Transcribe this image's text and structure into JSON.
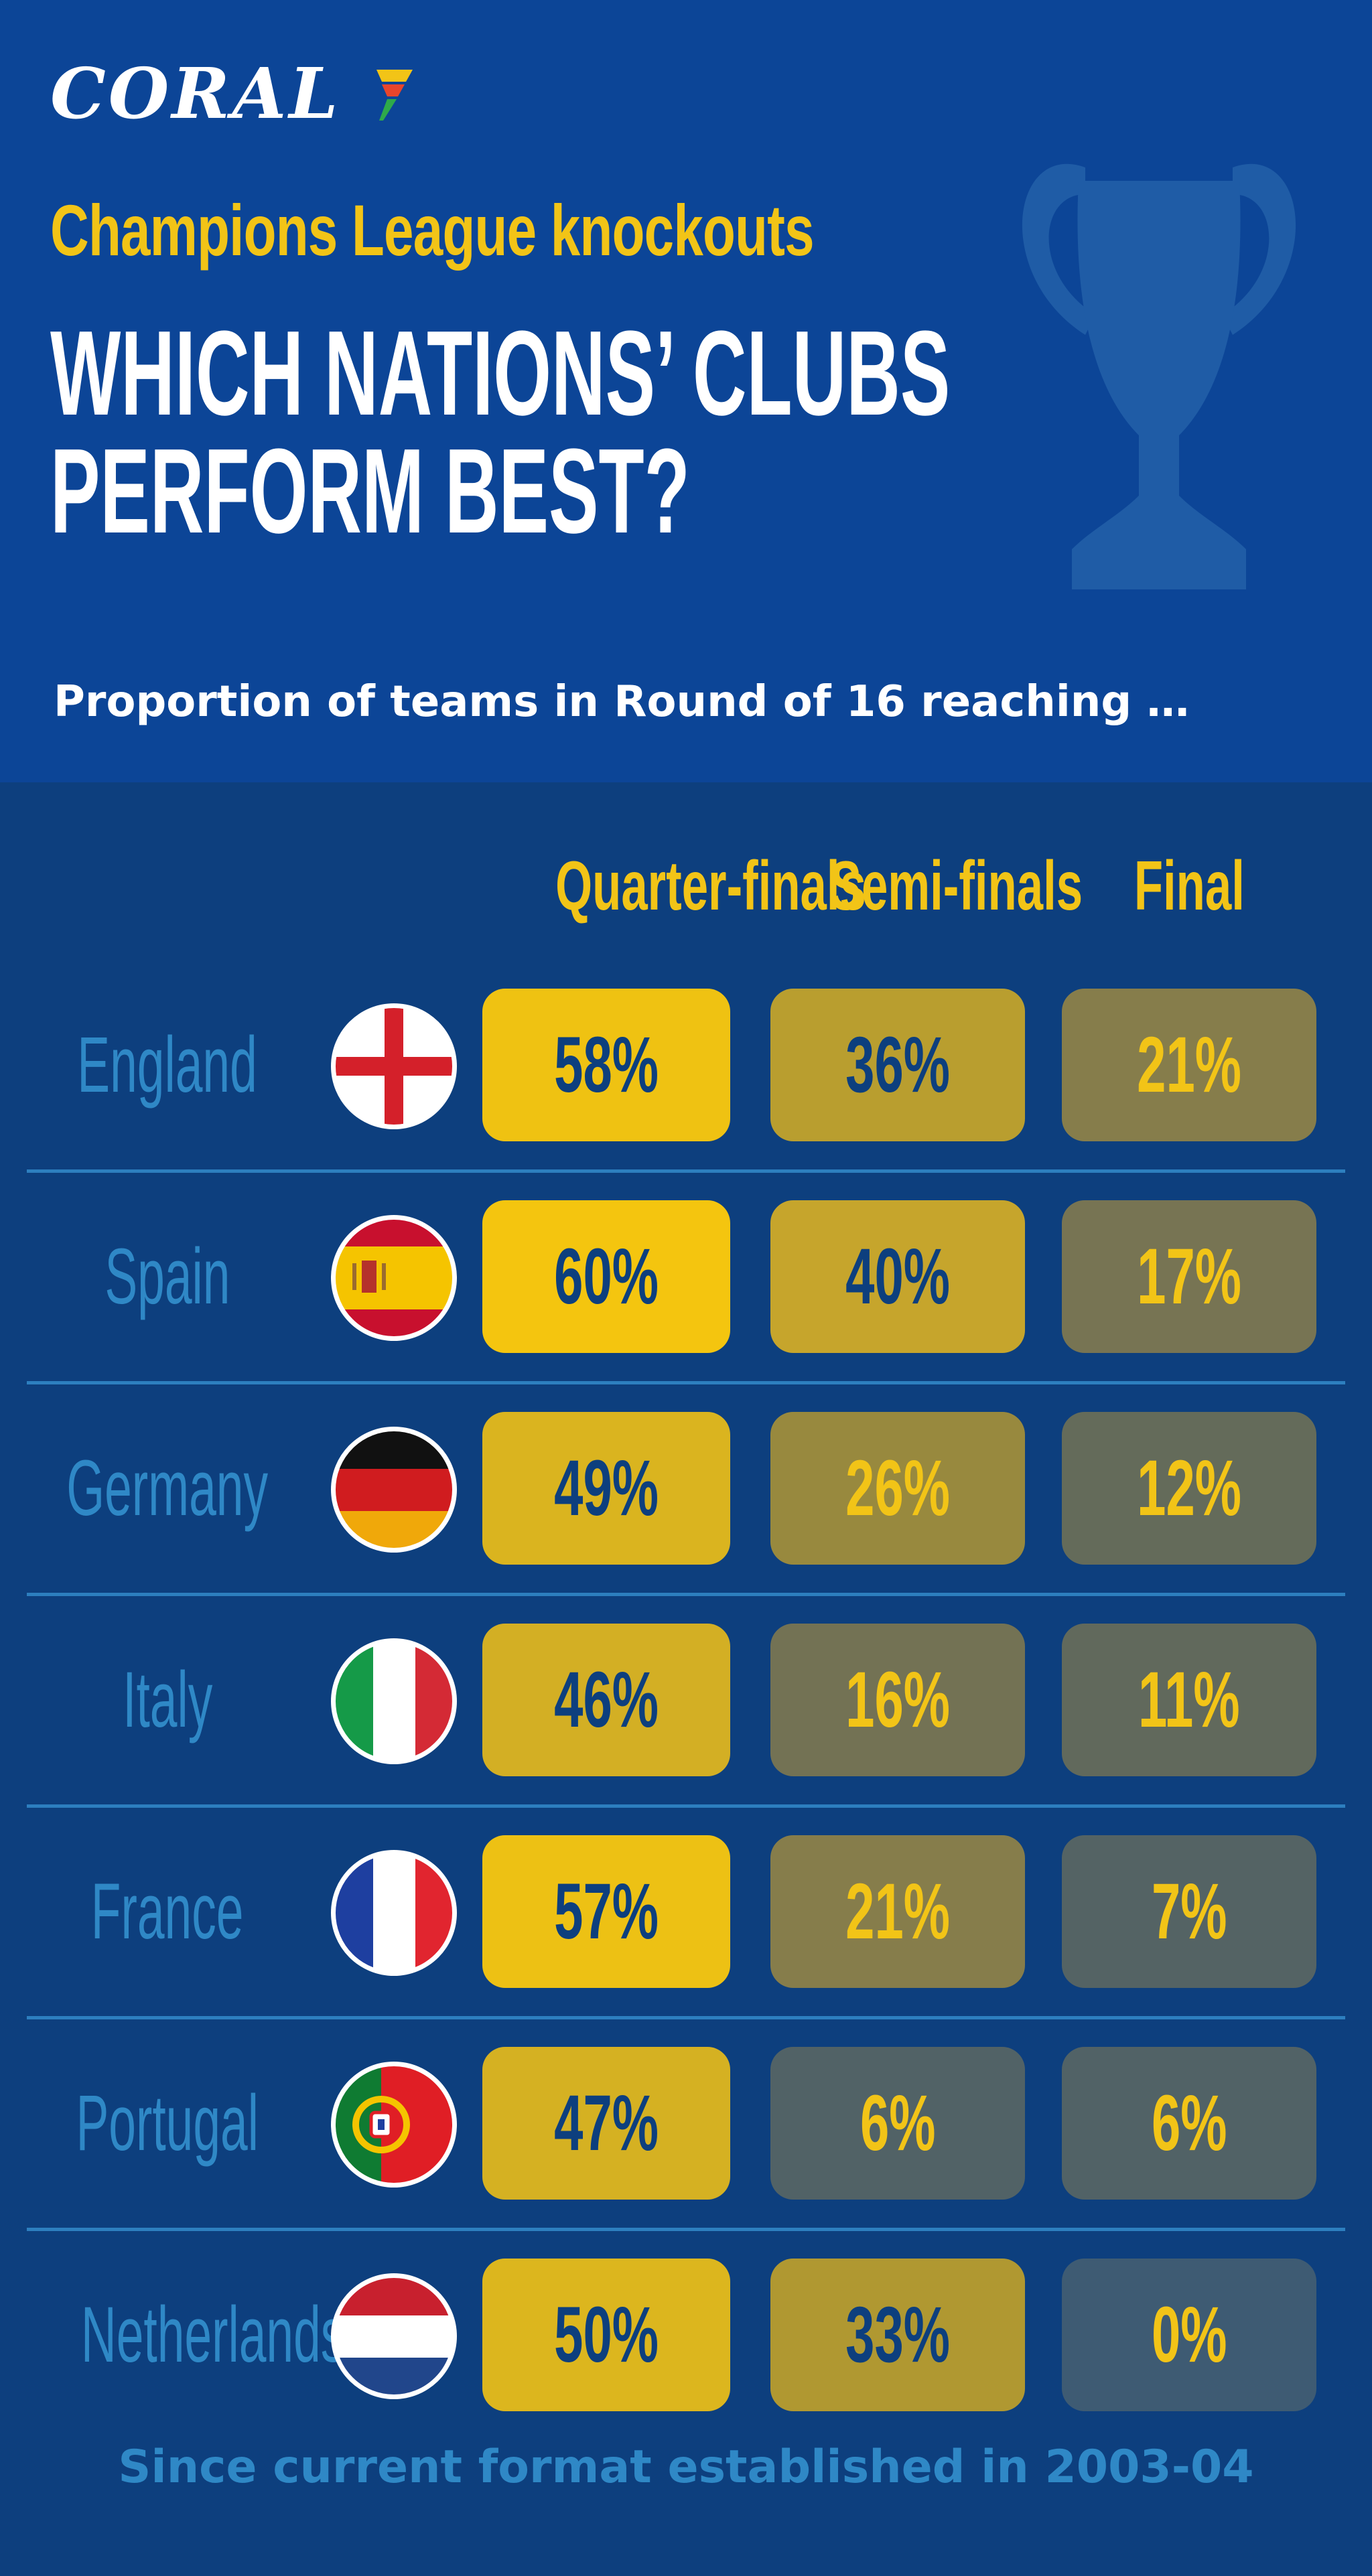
{
  "brand": {
    "name": "CORAL"
  },
  "header": {
    "subtitle": "Champions League knockouts",
    "title_line1": "WHICH NATIONS’ CLUBS",
    "title_line2": "PERFORM BEST?",
    "intro": "Proportion of teams in Round of 16 reaching …"
  },
  "colors": {
    "header_bg": "#0c4597",
    "body_bg": "#0d3f7e",
    "accent_yellow": "#f2c417",
    "nation_text": "#2f88c6",
    "dark_text": "#0d3f7e"
  },
  "chart_data": {
    "type": "table",
    "title": "Champions League knockouts",
    "columns": [
      "Quarter-finals",
      "Semi-finals",
      "Final"
    ],
    "rows": [
      {
        "nation": "England",
        "flag": "england-flag",
        "values": [
          "58%",
          "36%",
          "21%"
        ],
        "numbers": [
          58,
          36,
          21
        ]
      },
      {
        "nation": "Spain",
        "flag": "spain-flag",
        "values": [
          "60%",
          "40%",
          "17%"
        ],
        "numbers": [
          60,
          40,
          17
        ]
      },
      {
        "nation": "Germany",
        "flag": "germany-flag",
        "values": [
          "49%",
          "26%",
          "12%"
        ],
        "numbers": [
          49,
          26,
          12
        ]
      },
      {
        "nation": "Italy",
        "flag": "italy-flag",
        "values": [
          "46%",
          "16%",
          "11%"
        ],
        "numbers": [
          46,
          16,
          11
        ]
      },
      {
        "nation": "France",
        "flag": "france-flag",
        "values": [
          "57%",
          "21%",
          "7%"
        ],
        "numbers": [
          57,
          21,
          7
        ]
      },
      {
        "nation": "Portugal",
        "flag": "portugal-flag",
        "values": [
          "47%",
          "6%",
          "6%"
        ],
        "numbers": [
          47,
          6,
          6
        ]
      },
      {
        "nation": "Netherlands",
        "flag": "netherlands-flag",
        "values": [
          "50%",
          "33%",
          "0%"
        ],
        "numbers": [
          50,
          33,
          0
        ]
      }
    ]
  },
  "footer": {
    "note": "Since current format established in 2003-04"
  }
}
